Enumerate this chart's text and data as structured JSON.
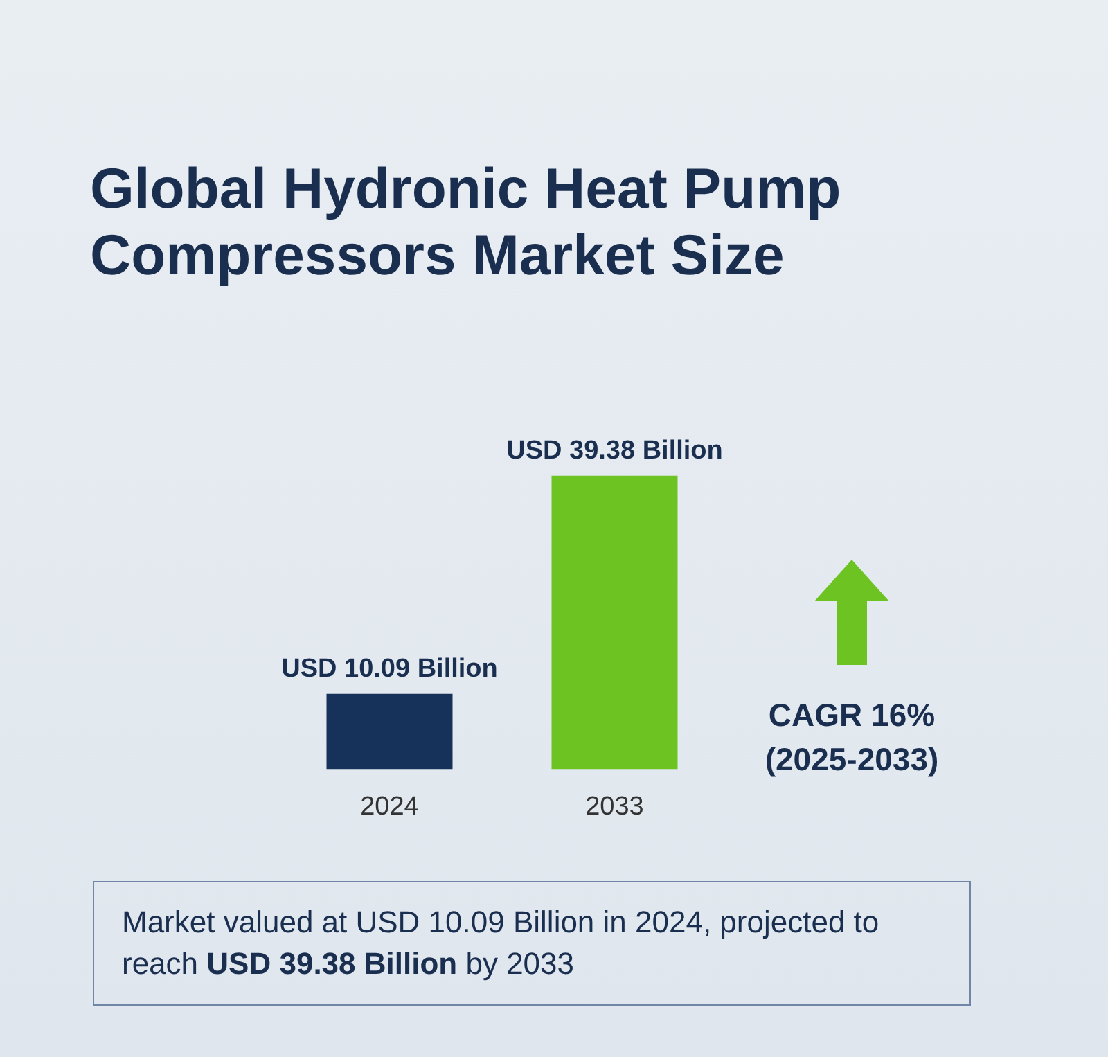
{
  "chart_data": {
    "type": "bar",
    "title": "Global Hydronic Heat Pump Compressors Market Size",
    "categories": [
      "2024",
      "2033"
    ],
    "values": [
      10.09,
      39.38
    ],
    "colors": [
      "#17325a",
      "#6cc322"
    ],
    "value_labels": [
      "USD 10.09 Billion",
      "USD 39.38 Billion"
    ],
    "annotations": [
      "CAGR 16%\n(2025-2033)",
      "Market valued at USD 10.09 Billion in 2024, projected to reach USD 39.38 Billion by 2033"
    ],
    "grid": false,
    "legend": false,
    "tick_labels": "x"
  }
}
